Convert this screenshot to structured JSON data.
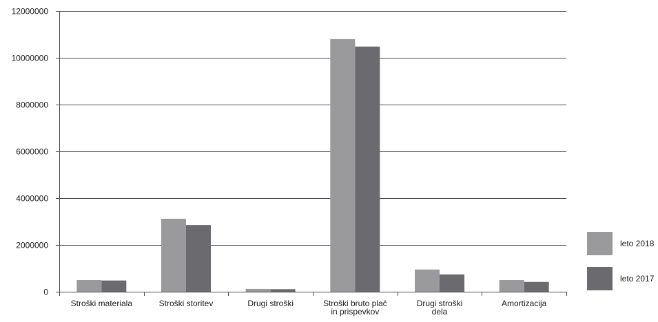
{
  "chart_data": {
    "type": "bar",
    "categories": [
      [
        "Stroški materiala"
      ],
      [
        "Stroški storitev"
      ],
      [
        "Drugi stroški"
      ],
      [
        "Stroški bruto plač",
        "in prispevkov"
      ],
      [
        "Drugi stroški",
        "dela"
      ],
      [
        "Amortizacija"
      ]
    ],
    "series": [
      {
        "name": "leto 2018",
        "color": "#9a9a9d",
        "values": [
          500000,
          3120000,
          120000,
          10800000,
          950000,
          500000
        ]
      },
      {
        "name": "leto 2017",
        "color": "#6b6b6f",
        "values": [
          480000,
          2850000,
          110000,
          10480000,
          740000,
          420000
        ]
      }
    ],
    "yticks": [
      "0",
      "2000000",
      "4000000",
      "6000000",
      "8000000",
      "10000000",
      "12000000"
    ],
    "ylim": [
      0,
      12000000
    ],
    "grid": true,
    "legend_position": "bottom-right",
    "axis_color": "#4a4a4a"
  }
}
